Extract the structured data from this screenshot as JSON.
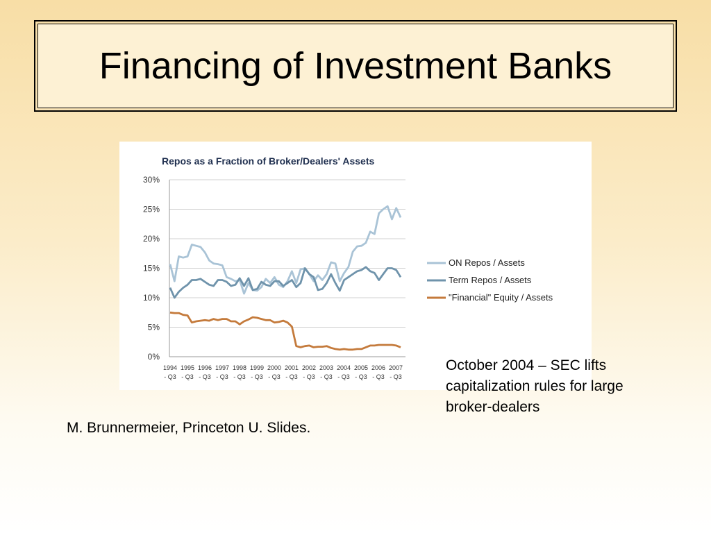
{
  "slide": {
    "title": "Financing of Investment Banks",
    "annotation_lines": [
      "October 2004 – SEC lifts",
      "capitalization rules for large",
      "broker-dealers"
    ],
    "source": "M. Brunnermeier, Princeton U. Slides."
  },
  "chart_data": {
    "type": "line",
    "title": "Repos as a Fraction of Broker/Dealers' Assets",
    "xlabel": "",
    "ylabel": "",
    "ylim": [
      0,
      0.3
    ],
    "yticks": [
      "0%",
      "5%",
      "10%",
      "15%",
      "20%",
      "25%",
      "30%"
    ],
    "xtick_labels": [
      [
        "1994",
        "- Q3"
      ],
      [
        "1995",
        "- Q3"
      ],
      [
        "1996",
        "- Q3"
      ],
      [
        "1997",
        "- Q3"
      ],
      [
        "1998",
        "- Q3"
      ],
      [
        "1999",
        "- Q3"
      ],
      [
        "2000",
        "- Q3"
      ],
      [
        "2001",
        "- Q3"
      ],
      [
        "2002",
        "- Q3"
      ],
      [
        "2003",
        "- Q3"
      ],
      [
        "2004",
        "- Q3"
      ],
      [
        "2005",
        "- Q3"
      ],
      [
        "2006",
        "- Q3"
      ],
      [
        "2007",
        "- Q3"
      ]
    ],
    "grid": true,
    "legend": "right",
    "series": [
      {
        "name": "ON Repos / Assets",
        "color": "#a9c3d6",
        "values": [
          0.157,
          0.128,
          0.17,
          0.168,
          0.17,
          0.19,
          0.188,
          0.186,
          0.177,
          0.163,
          0.158,
          0.157,
          0.155,
          0.135,
          0.132,
          0.128,
          0.13,
          0.107,
          0.125,
          0.113,
          0.112,
          0.118,
          0.132,
          0.125,
          0.135,
          0.122,
          0.118,
          0.128,
          0.145,
          0.125,
          0.148,
          0.15,
          0.14,
          0.128,
          0.138,
          0.13,
          0.14,
          0.16,
          0.158,
          0.128,
          0.142,
          0.152,
          0.178,
          0.187,
          0.188,
          0.193,
          0.212,
          0.208,
          0.243,
          0.25,
          0.255,
          0.233,
          0.252,
          0.236
        ]
      },
      {
        "name": "Term Repos / Assets",
        "color": "#6f93ab",
        "values": [
          0.117,
          0.1,
          0.11,
          0.117,
          0.122,
          0.13,
          0.13,
          0.132,
          0.127,
          0.122,
          0.12,
          0.13,
          0.13,
          0.127,
          0.12,
          0.122,
          0.133,
          0.12,
          0.133,
          0.113,
          0.115,
          0.127,
          0.122,
          0.12,
          0.128,
          0.128,
          0.12,
          0.125,
          0.13,
          0.118,
          0.125,
          0.15,
          0.14,
          0.135,
          0.113,
          0.115,
          0.125,
          0.14,
          0.125,
          0.112,
          0.13,
          0.135,
          0.14,
          0.145,
          0.147,
          0.152,
          0.145,
          0.142,
          0.13,
          0.14,
          0.15,
          0.15,
          0.147,
          0.135
        ]
      },
      {
        "name": "\"Financial\" Equity / Assets",
        "color": "#c47a3b",
        "values": [
          0.075,
          0.074,
          0.074,
          0.071,
          0.07,
          0.058,
          0.06,
          0.061,
          0.062,
          0.061,
          0.064,
          0.062,
          0.064,
          0.064,
          0.06,
          0.06,
          0.055,
          0.06,
          0.063,
          0.067,
          0.066,
          0.064,
          0.062,
          0.062,
          0.058,
          0.059,
          0.061,
          0.058,
          0.051,
          0.018,
          0.016,
          0.018,
          0.019,
          0.016,
          0.017,
          0.017,
          0.018,
          0.015,
          0.013,
          0.012,
          0.013,
          0.012,
          0.012,
          0.013,
          0.013,
          0.016,
          0.019,
          0.019,
          0.02,
          0.02,
          0.02,
          0.02,
          0.019,
          0.016
        ]
      }
    ]
  }
}
